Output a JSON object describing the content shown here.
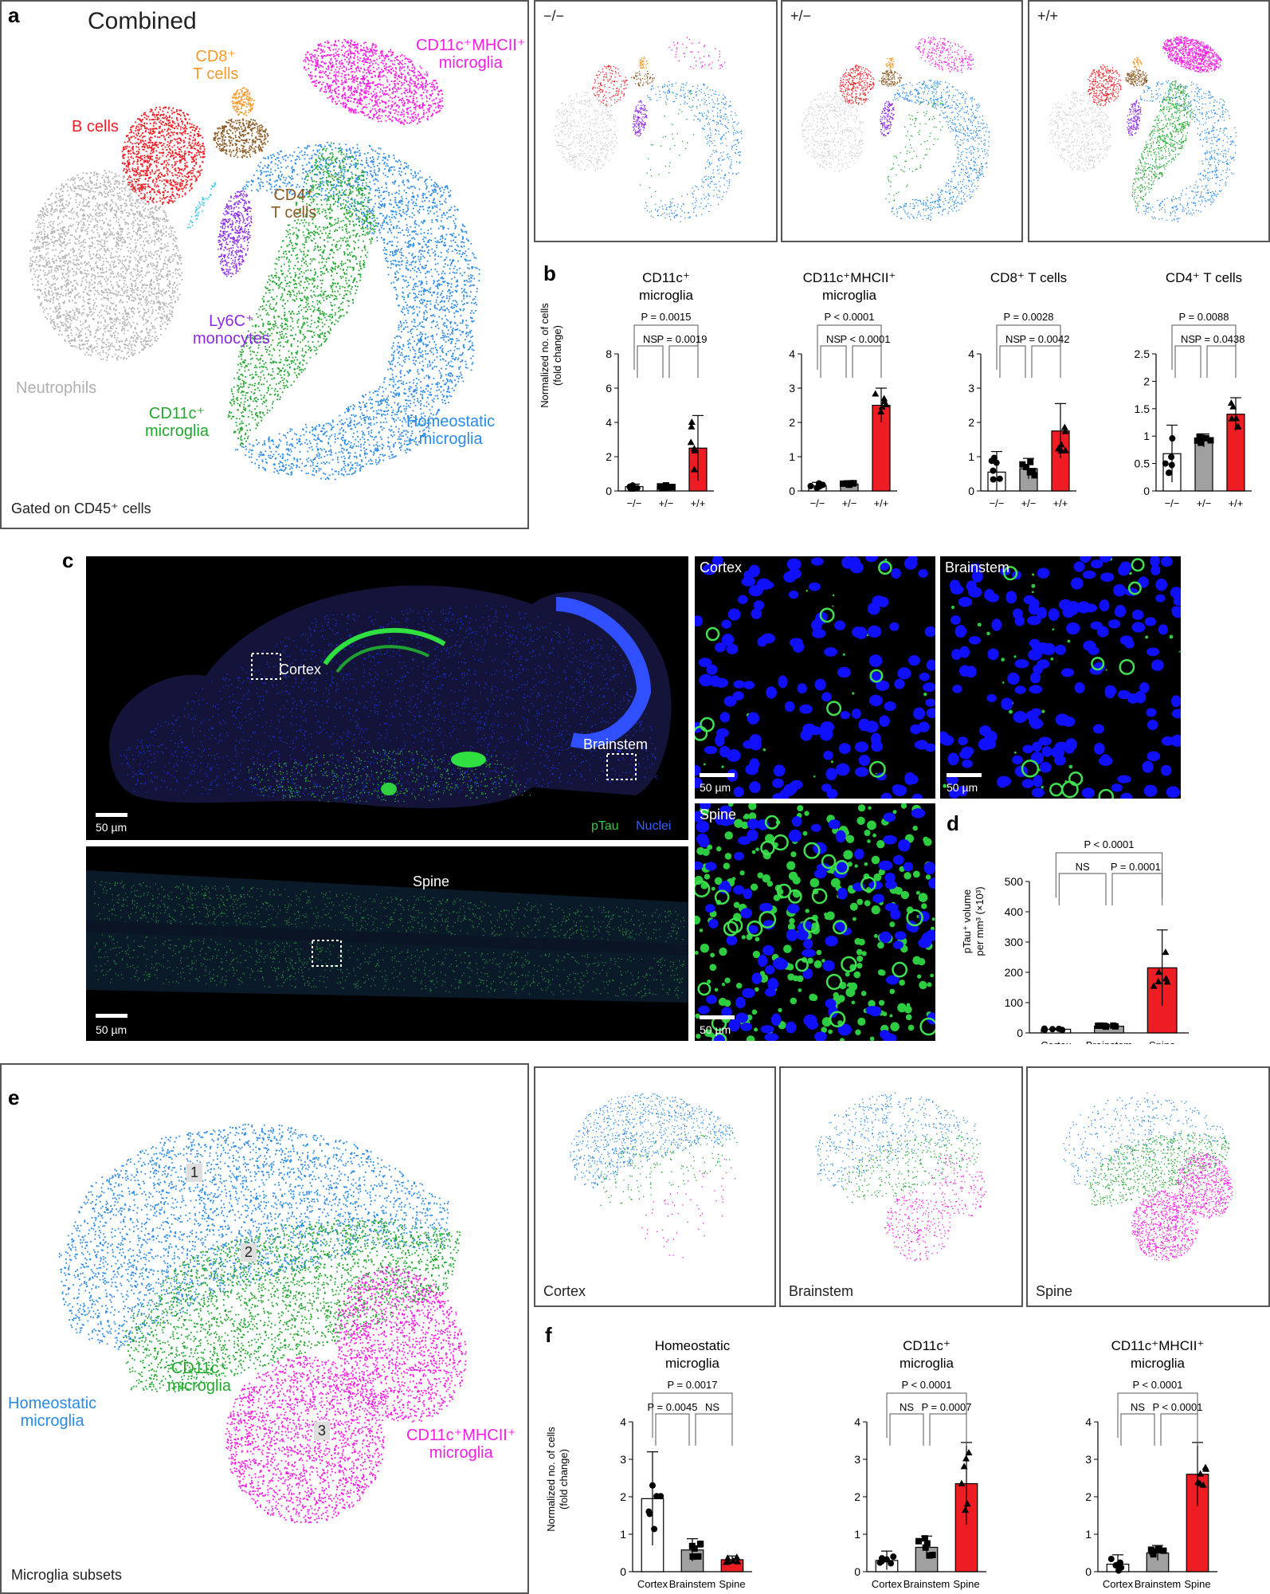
{
  "panel_a": {
    "letter": "a",
    "title": "Combined",
    "footer": "Gated on CD45⁺ cells",
    "labels": {
      "cd8": "CD8⁺\nT cells",
      "mhcii": "CD11c⁺MHCII⁺\nmicroglia",
      "bcells": "B cells",
      "cd4": "CD4⁺\nT cells",
      "ly6c": "Ly6C⁺\nmonocytes",
      "neut": "Neutrophils",
      "cd11c": "CD11c⁺\nmicroglia",
      "homeo": "Homeostatic\nmicroglia"
    },
    "genotypes": [
      "−/−",
      "+/−",
      "+/+"
    ]
  },
  "panel_b": {
    "letter": "b",
    "charts": [
      {
        "title": "CD11c⁺\nmicroglia",
        "ylim": [
          0,
          8
        ],
        "ticks": [
          0,
          2,
          4,
          6,
          8
        ],
        "values": [
          0.25,
          0.25,
          2.5
        ],
        "errors": [
          0.15,
          0.1,
          1.9
        ],
        "sig": [
          {
            "text": "P = 0.0015",
            "level": 2
          },
          {
            "text": "NS",
            "level": 1
          },
          {
            "text": "P = 0.0019",
            "level": 1
          }
        ]
      },
      {
        "title": "CD11c⁺MHCII⁺\nmicroglia",
        "ylim": [
          0,
          4
        ],
        "ticks": [
          0,
          1,
          2,
          3,
          4
        ],
        "values": [
          0.15,
          0.2,
          2.5
        ],
        "errors": [
          0.1,
          0.1,
          0.5
        ],
        "sig": [
          {
            "text": "P < 0.0001",
            "level": 2
          },
          {
            "text": "NS",
            "level": 1
          },
          {
            "text": "P < 0.0001",
            "level": 1
          }
        ]
      },
      {
        "title": "CD8⁺ T cells",
        "ylim": [
          0,
          4
        ],
        "ticks": [
          0,
          1,
          2,
          3,
          4
        ],
        "values": [
          0.55,
          0.65,
          1.75
        ],
        "errors": [
          0.6,
          0.3,
          0.8
        ],
        "sig": [
          {
            "text": "P = 0.0028",
            "level": 2
          },
          {
            "text": "NS",
            "level": 1
          },
          {
            "text": "P = 0.0042",
            "level": 1
          }
        ]
      },
      {
        "title": "CD4⁺ T cells",
        "ylim": [
          0,
          2.5
        ],
        "ticks": [
          0,
          0.5,
          1.0,
          1.5,
          2.0,
          2.5
        ],
        "values": [
          0.68,
          0.92,
          1.4
        ],
        "errors": [
          0.52,
          0.12,
          0.3
        ],
        "sig": [
          {
            "text": "P = 0.0088",
            "level": 2
          },
          {
            "text": "NS",
            "level": 1
          },
          {
            "text": "P = 0.0438",
            "level": 1
          }
        ]
      }
    ],
    "categories": [
      "−/−",
      "+/−",
      "+/+"
    ],
    "ylabel": "Normalized no. of cells\n(fold change)"
  },
  "panel_c": {
    "letter": "c",
    "sagittal": {
      "cortex": "Cortex",
      "brainstem": "Brainstem",
      "scale": "50 µm",
      "ptau": "pTau",
      "nuclei": "Nuclei"
    },
    "spine": {
      "title": "Spine",
      "scale": "50 µm"
    },
    "zoom": [
      {
        "label": "Cortex",
        "scale": "50 µm"
      },
      {
        "label": "Brainstem",
        "scale": "50 µm"
      },
      {
        "label": "Spine",
        "scale": "50 µm"
      }
    ]
  },
  "panel_d": {
    "letter": "d",
    "ylabel": "pTau⁺ volume\nper mm³ (×10³)",
    "ylim": [
      0,
      500
    ],
    "ticks": [
      0,
      100,
      200,
      300,
      400,
      500
    ],
    "categories": [
      "Cortex",
      "Brainstem",
      "Spine"
    ],
    "values": [
      12,
      22,
      215
    ],
    "errors": [
      3,
      5,
      125
    ],
    "sig": [
      "P < 0.0001",
      "NS",
      "P = 0.0001"
    ]
  },
  "panel_e": {
    "letter": "e",
    "footer": "Microglia subsets",
    "labels": {
      "c1": "1",
      "c2": "2",
      "c3": "3",
      "cd11c": "CD11c⁺\nmicroglia",
      "homeo": "Homeostatic\nmicroglia",
      "mhcii": "CD11c⁺MHCII⁺\nmicroglia"
    },
    "regions": [
      "Cortex",
      "Brainstem",
      "Spine"
    ]
  },
  "panel_f": {
    "letter": "f",
    "ylabel": "Normalized no. of cells\n(fold change)",
    "categories": [
      "Cortex",
      "Brainstem",
      "Spine"
    ],
    "charts": [
      {
        "title": "Homeostatic\nmicroglia",
        "values": [
          1.95,
          0.58,
          0.32
        ],
        "errors": [
          1.25,
          0.3,
          0.1
        ],
        "sig": [
          {
            "text": "P = 0.0017",
            "level": 2
          },
          {
            "text": "P = 0.0045",
            "level": 1
          },
          {
            "text": "NS",
            "level": 1
          }
        ]
      },
      {
        "title": "CD11c⁺\nmicroglia",
        "values": [
          0.3,
          0.65,
          2.35
        ],
        "errors": [
          0.25,
          0.3,
          1.1
        ],
        "sig": [
          {
            "text": "P < 0.0001",
            "level": 2
          },
          {
            "text": "NS",
            "level": 1
          },
          {
            "text": "P = 0.0007",
            "level": 1
          }
        ]
      },
      {
        "title": "CD11c⁺MHCII⁺\nmicroglia",
        "values": [
          0.2,
          0.5,
          2.6
        ],
        "errors": [
          0.25,
          0.2,
          0.85
        ],
        "sig": [
          {
            "text": "P < 0.0001",
            "level": 2
          },
          {
            "text": "NS",
            "level": 1
          },
          {
            "text": "P < 0.0001",
            "level": 1
          }
        ]
      }
    ],
    "ylim": [
      0,
      4
    ],
    "ticks": [
      0,
      1,
      2,
      3,
      4
    ]
  },
  "colors": {
    "homeo": "#2b8ae6",
    "cd11c": "#22a62e",
    "mhcii": "#f21fe0",
    "bcells": "#ee1d24",
    "cd8": "#f79a2e",
    "cd4": "#8a5a24",
    "ly6c": "#8a2be2",
    "neut": "#b4b4b4",
    "ptau": "#2ecc40",
    "nuclei": "#1010ff",
    "bar_wt": "#ffffff",
    "bar_het": "#a0a0a0",
    "bar_hom": "#ee1d24"
  }
}
